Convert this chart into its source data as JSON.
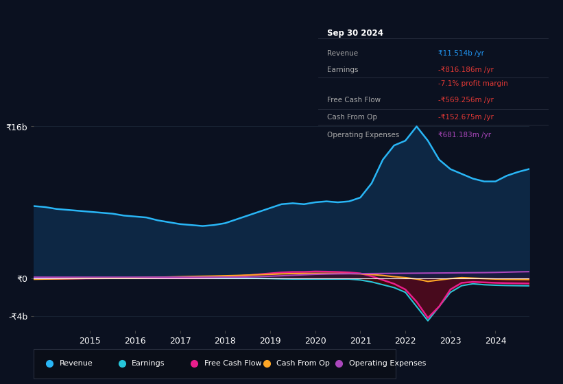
{
  "bg_color": "#0b1120",
  "plot_bg_color": "#0b1120",
  "title_box": {
    "date": "Sep 30 2024",
    "rows": [
      {
        "label": "Revenue",
        "value": "₹11.514b /yr",
        "value_color": "#2196f3"
      },
      {
        "label": "Earnings",
        "value": "-₹816.186m /yr",
        "value_color": "#e53935"
      },
      {
        "label": "",
        "value": "-7.1% profit margin",
        "value_color": "#e53935"
      },
      {
        "label": "Free Cash Flow",
        "value": "-₹569.256m /yr",
        "value_color": "#e53935"
      },
      {
        "label": "Cash From Op",
        "value": "-₹152.675m /yr",
        "value_color": "#e53935"
      },
      {
        "label": "Operating Expenses",
        "value": "₹681.183m /yr",
        "value_color": "#ab47bc"
      }
    ]
  },
  "y_label_top": "₹16b",
  "y_label_zero": "₹0",
  "y_label_bottom": "-₹4b",
  "ylim_low": -5500000000,
  "ylim_high": 18000000000,
  "years": [
    2013.75,
    2014.0,
    2014.25,
    2014.5,
    2014.75,
    2015.0,
    2015.25,
    2015.5,
    2015.75,
    2016.0,
    2016.25,
    2016.5,
    2016.75,
    2017.0,
    2017.25,
    2017.5,
    2017.75,
    2018.0,
    2018.25,
    2018.5,
    2018.75,
    2019.0,
    2019.25,
    2019.5,
    2019.75,
    2020.0,
    2020.25,
    2020.5,
    2020.75,
    2021.0,
    2021.25,
    2021.5,
    2021.75,
    2022.0,
    2022.25,
    2022.5,
    2022.75,
    2023.0,
    2023.25,
    2023.5,
    2023.75,
    2024.0,
    2024.25,
    2024.5,
    2024.75
  ],
  "revenue": [
    7600000000,
    7500000000,
    7300000000,
    7200000000,
    7100000000,
    7000000000,
    6900000000,
    6800000000,
    6600000000,
    6500000000,
    6400000000,
    6100000000,
    5900000000,
    5700000000,
    5600000000,
    5500000000,
    5600000000,
    5800000000,
    6200000000,
    6600000000,
    7000000000,
    7400000000,
    7800000000,
    7900000000,
    7800000000,
    8000000000,
    8100000000,
    8000000000,
    8100000000,
    8500000000,
    10000000000,
    12500000000,
    14000000000,
    14500000000,
    16000000000,
    14500000000,
    12500000000,
    11500000000,
    11000000000,
    10500000000,
    10200000000,
    10200000000,
    10800000000,
    11200000000,
    11514000000
  ],
  "earnings": [
    50000000,
    40000000,
    30000000,
    20000000,
    10000000,
    0,
    0,
    0,
    -10000000,
    -10000000,
    -10000000,
    -10000000,
    -20000000,
    -20000000,
    -20000000,
    -20000000,
    -20000000,
    -20000000,
    -20000000,
    -20000000,
    -30000000,
    -50000000,
    -80000000,
    -100000000,
    -100000000,
    -100000000,
    -100000000,
    -100000000,
    -100000000,
    -200000000,
    -400000000,
    -700000000,
    -1000000000,
    -1500000000,
    -3000000000,
    -4500000000,
    -3000000000,
    -1500000000,
    -800000000,
    -600000000,
    -700000000,
    -750000000,
    -780000000,
    -800000000,
    -816000000
  ],
  "free_cash_flow": [
    -80000000,
    -70000000,
    -60000000,
    -50000000,
    -40000000,
    -30000000,
    -20000000,
    -10000000,
    -10000000,
    0,
    0,
    20000000,
    30000000,
    40000000,
    60000000,
    80000000,
    100000000,
    150000000,
    200000000,
    300000000,
    400000000,
    500000000,
    600000000,
    650000000,
    650000000,
    700000000,
    680000000,
    650000000,
    600000000,
    500000000,
    200000000,
    -200000000,
    -600000000,
    -1200000000,
    -2500000000,
    -4200000000,
    -3000000000,
    -1200000000,
    -500000000,
    -400000000,
    -450000000,
    -500000000,
    -530000000,
    -550000000,
    -569000000
  ],
  "cash_from_op": [
    -120000000,
    -100000000,
    -80000000,
    -60000000,
    -40000000,
    -20000000,
    0,
    20000000,
    30000000,
    50000000,
    80000000,
    100000000,
    120000000,
    150000000,
    180000000,
    200000000,
    220000000,
    250000000,
    280000000,
    320000000,
    360000000,
    400000000,
    450000000,
    480000000,
    490000000,
    500000000,
    500000000,
    490000000,
    480000000,
    450000000,
    380000000,
    280000000,
    150000000,
    50000000,
    -100000000,
    -350000000,
    -200000000,
    -50000000,
    50000000,
    0,
    -50000000,
    -100000000,
    -130000000,
    -140000000,
    -153000000
  ],
  "operating_expenses": [
    100000000,
    100000000,
    100000000,
    100000000,
    100000000,
    100000000,
    100000000,
    100000000,
    100000000,
    100000000,
    100000000,
    100000000,
    100000000,
    100000000,
    100000000,
    100000000,
    100000000,
    100000000,
    100000000,
    120000000,
    150000000,
    200000000,
    250000000,
    300000000,
    350000000,
    400000000,
    430000000,
    450000000,
    460000000,
    470000000,
    480000000,
    490000000,
    500000000,
    510000000,
    520000000,
    530000000,
    540000000,
    550000000,
    560000000,
    570000000,
    580000000,
    600000000,
    630000000,
    660000000,
    681000000
  ],
  "revenue_line_color": "#29b6f6",
  "revenue_fill_color": "#0d2744",
  "earnings_line_color": "#26c6da",
  "earnings_fill_neg_color": "#3d0a0a",
  "free_cash_flow_line_color": "#e91e8c",
  "free_cash_flow_fill_pos_color": "#5c2040",
  "free_cash_flow_fill_neg_color": "#5c1030",
  "cash_from_op_line_color": "#ffa726",
  "operating_expenses_line_color": "#ab47bc",
  "grid_color": "#1a2535",
  "zero_line_color": "#ffffff",
  "legend": [
    {
      "label": "Revenue",
      "color": "#29b6f6"
    },
    {
      "label": "Earnings",
      "color": "#26c6da"
    },
    {
      "label": "Free Cash Flow",
      "color": "#e91e8c"
    },
    {
      "label": "Cash From Op",
      "color": "#ffa726"
    },
    {
      "label": "Operating Expenses",
      "color": "#ab47bc"
    }
  ]
}
